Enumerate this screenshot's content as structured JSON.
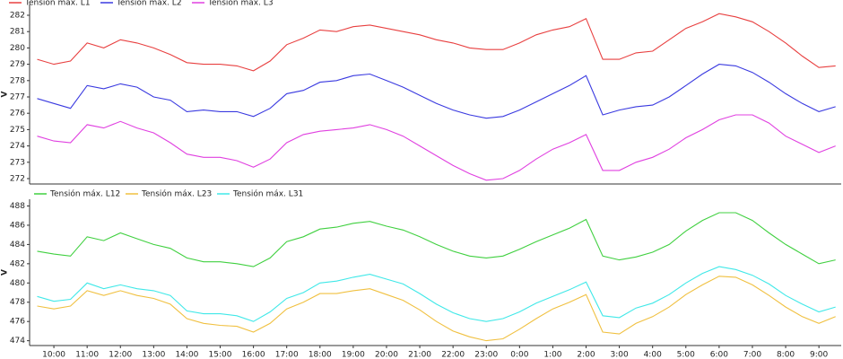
{
  "chart_data": [
    {
      "type": "line",
      "y_label": "V",
      "legend": "top-left",
      "grid": false,
      "xlim": [
        9.27,
        33.67
      ],
      "ylim": [
        271.67,
        282.66
      ],
      "yticks": [
        272,
        273,
        274,
        275,
        276,
        277,
        278,
        279,
        280,
        281,
        282
      ],
      "x": [
        9.5,
        10,
        10.5,
        11,
        11.5,
        12,
        12.5,
        13,
        13.5,
        14,
        14.5,
        15,
        15.5,
        16,
        16.5,
        17,
        17.5,
        18,
        18.5,
        19,
        19.5,
        20,
        20.5,
        21,
        21.5,
        22,
        22.5,
        23,
        23.5,
        24,
        24.5,
        25,
        25.5,
        26,
        26.5,
        27,
        27.5,
        28,
        28.5,
        29,
        29.5,
        30,
        30.5,
        31,
        31.5,
        32,
        32.5,
        33,
        33.5
      ],
      "series": [
        {
          "name": "Tensión máx. L1",
          "color": "#e84040",
          "values": [
            279.3,
            279.0,
            279.2,
            280.3,
            280.0,
            280.5,
            280.3,
            280.0,
            279.6,
            279.1,
            279.0,
            279.0,
            278.9,
            278.6,
            279.2,
            280.2,
            280.6,
            281.1,
            281.0,
            281.3,
            281.4,
            281.2,
            281.0,
            280.8,
            280.5,
            280.3,
            280.0,
            279.9,
            279.9,
            280.3,
            280.8,
            281.1,
            281.3,
            281.8,
            279.3,
            279.3,
            279.7,
            279.8,
            280.5,
            281.2,
            281.6,
            282.1,
            281.9,
            281.6,
            281.0,
            280.3,
            279.5,
            278.8,
            278.9
          ]
        },
        {
          "name": "Tensión máx. L2",
          "color": "#3a3ae0",
          "values": [
            276.9,
            276.6,
            276.3,
            277.7,
            277.5,
            277.8,
            277.6,
            277.0,
            276.8,
            276.1,
            276.2,
            276.1,
            276.1,
            275.8,
            276.3,
            277.2,
            277.4,
            277.9,
            278.0,
            278.3,
            278.4,
            278.0,
            277.6,
            277.1,
            276.6,
            276.2,
            275.9,
            275.7,
            275.8,
            276.2,
            276.7,
            277.2,
            277.7,
            278.3,
            275.9,
            276.2,
            276.4,
            276.5,
            277.0,
            277.7,
            278.4,
            279.0,
            278.9,
            278.5,
            277.9,
            277.2,
            276.6,
            276.1,
            276.4
          ]
        },
        {
          "name": "Tensión máx. L3",
          "color": "#e040e0",
          "values": [
            274.6,
            274.3,
            274.2,
            275.3,
            275.1,
            275.5,
            275.1,
            274.8,
            274.2,
            273.5,
            273.3,
            273.3,
            273.1,
            272.7,
            273.2,
            274.2,
            274.7,
            274.9,
            275.0,
            275.1,
            275.3,
            275.0,
            274.6,
            274.0,
            273.4,
            272.8,
            272.3,
            271.9,
            272.0,
            272.5,
            273.2,
            273.8,
            274.2,
            274.7,
            272.5,
            272.5,
            273.0,
            273.3,
            273.8,
            274.5,
            275.0,
            275.6,
            275.9,
            275.9,
            275.4,
            274.6,
            274.1,
            273.6,
            274.0
          ]
        }
      ]
    },
    {
      "type": "line",
      "y_label": "V",
      "legend": "top-left",
      "grid": false,
      "xlim": [
        9.27,
        33.67
      ],
      "ylim": [
        473.5,
        488.7
      ],
      "yticks": [
        474,
        476,
        478,
        480,
        482,
        484,
        486,
        488
      ],
      "xticks": [
        {
          "value": 10,
          "label": "10:00"
        },
        {
          "value": 11,
          "label": "11:00"
        },
        {
          "value": 12,
          "label": "12:00"
        },
        {
          "value": 13,
          "label": "13:00"
        },
        {
          "value": 14,
          "label": "14:00"
        },
        {
          "value": 15,
          "label": "15:00"
        },
        {
          "value": 16,
          "label": "16:00"
        },
        {
          "value": 17,
          "label": "17:00"
        },
        {
          "value": 18,
          "label": "18:00"
        },
        {
          "value": 19,
          "label": "19:00"
        },
        {
          "value": 20,
          "label": "20:00"
        },
        {
          "value": 21,
          "label": "21:00"
        },
        {
          "value": 22,
          "label": "22:00"
        },
        {
          "value": 23,
          "label": "23:00"
        },
        {
          "value": 24,
          "label": "0:00"
        },
        {
          "value": 25,
          "label": "1:00"
        },
        {
          "value": 26,
          "label": "2:00"
        },
        {
          "value": 27,
          "label": "3:00"
        },
        {
          "value": 28,
          "label": "4:00"
        },
        {
          "value": 29,
          "label": "5:00"
        },
        {
          "value": 30,
          "label": "6:00"
        },
        {
          "value": 31,
          "label": "7:00"
        },
        {
          "value": 32,
          "label": "8:00"
        },
        {
          "value": 33,
          "label": "9:00"
        }
      ],
      "x": [
        9.5,
        10,
        10.5,
        11,
        11.5,
        12,
        12.5,
        13,
        13.5,
        14,
        14.5,
        15,
        15.5,
        16,
        16.5,
        17,
        17.5,
        18,
        18.5,
        19,
        19.5,
        20,
        20.5,
        21,
        21.5,
        22,
        22.5,
        23,
        23.5,
        24,
        24.5,
        25,
        25.5,
        26,
        26.5,
        27,
        27.5,
        28,
        28.5,
        29,
        29.5,
        30,
        30.5,
        31,
        31.5,
        32,
        32.5,
        33,
        33.5
      ],
      "series": [
        {
          "name": "Tensión máx. L12",
          "color": "#40d040",
          "values": [
            483.3,
            483.0,
            482.8,
            484.8,
            484.4,
            485.2,
            484.6,
            484.0,
            483.6,
            482.6,
            482.2,
            482.2,
            482.0,
            481.7,
            482.6,
            484.3,
            484.8,
            485.6,
            485.8,
            486.2,
            486.4,
            485.9,
            485.5,
            484.8,
            484.0,
            483.3,
            482.8,
            482.6,
            482.8,
            483.5,
            484.3,
            485.0,
            485.7,
            486.6,
            482.8,
            482.4,
            482.7,
            483.2,
            484.0,
            485.4,
            486.5,
            487.3,
            487.3,
            486.5,
            485.2,
            484.0,
            483.0,
            482.0,
            482.4
          ]
        },
        {
          "name": "Tensión máx. L23",
          "color": "#f0c040",
          "values": [
            477.6,
            477.3,
            477.6,
            479.2,
            478.7,
            479.2,
            478.7,
            478.4,
            477.8,
            476.3,
            475.8,
            475.6,
            475.5,
            474.9,
            475.8,
            477.3,
            478.0,
            478.9,
            478.9,
            479.2,
            479.4,
            478.8,
            478.2,
            477.2,
            476.0,
            475.0,
            474.4,
            474.0,
            474.2,
            475.2,
            476.3,
            477.3,
            478.0,
            478.8,
            474.9,
            474.7,
            475.8,
            476.5,
            477.5,
            478.8,
            479.8,
            480.7,
            480.6,
            479.8,
            478.7,
            477.5,
            476.5,
            475.8,
            476.5
          ]
        },
        {
          "name": "Tensión máx. L31",
          "color": "#40e8e8",
          "values": [
            478.6,
            478.1,
            478.3,
            480.0,
            479.4,
            479.8,
            479.4,
            479.2,
            478.7,
            477.1,
            476.8,
            476.8,
            476.6,
            476.0,
            477.0,
            478.4,
            479.0,
            480.0,
            480.2,
            480.6,
            480.9,
            480.4,
            479.9,
            478.9,
            477.8,
            476.9,
            476.3,
            476.0,
            476.3,
            477.0,
            477.9,
            478.6,
            479.3,
            480.1,
            476.6,
            476.4,
            477.4,
            477.9,
            478.8,
            480.0,
            481.0,
            481.7,
            481.4,
            480.8,
            479.9,
            478.7,
            477.8,
            477.0,
            477.5
          ]
        }
      ]
    }
  ]
}
